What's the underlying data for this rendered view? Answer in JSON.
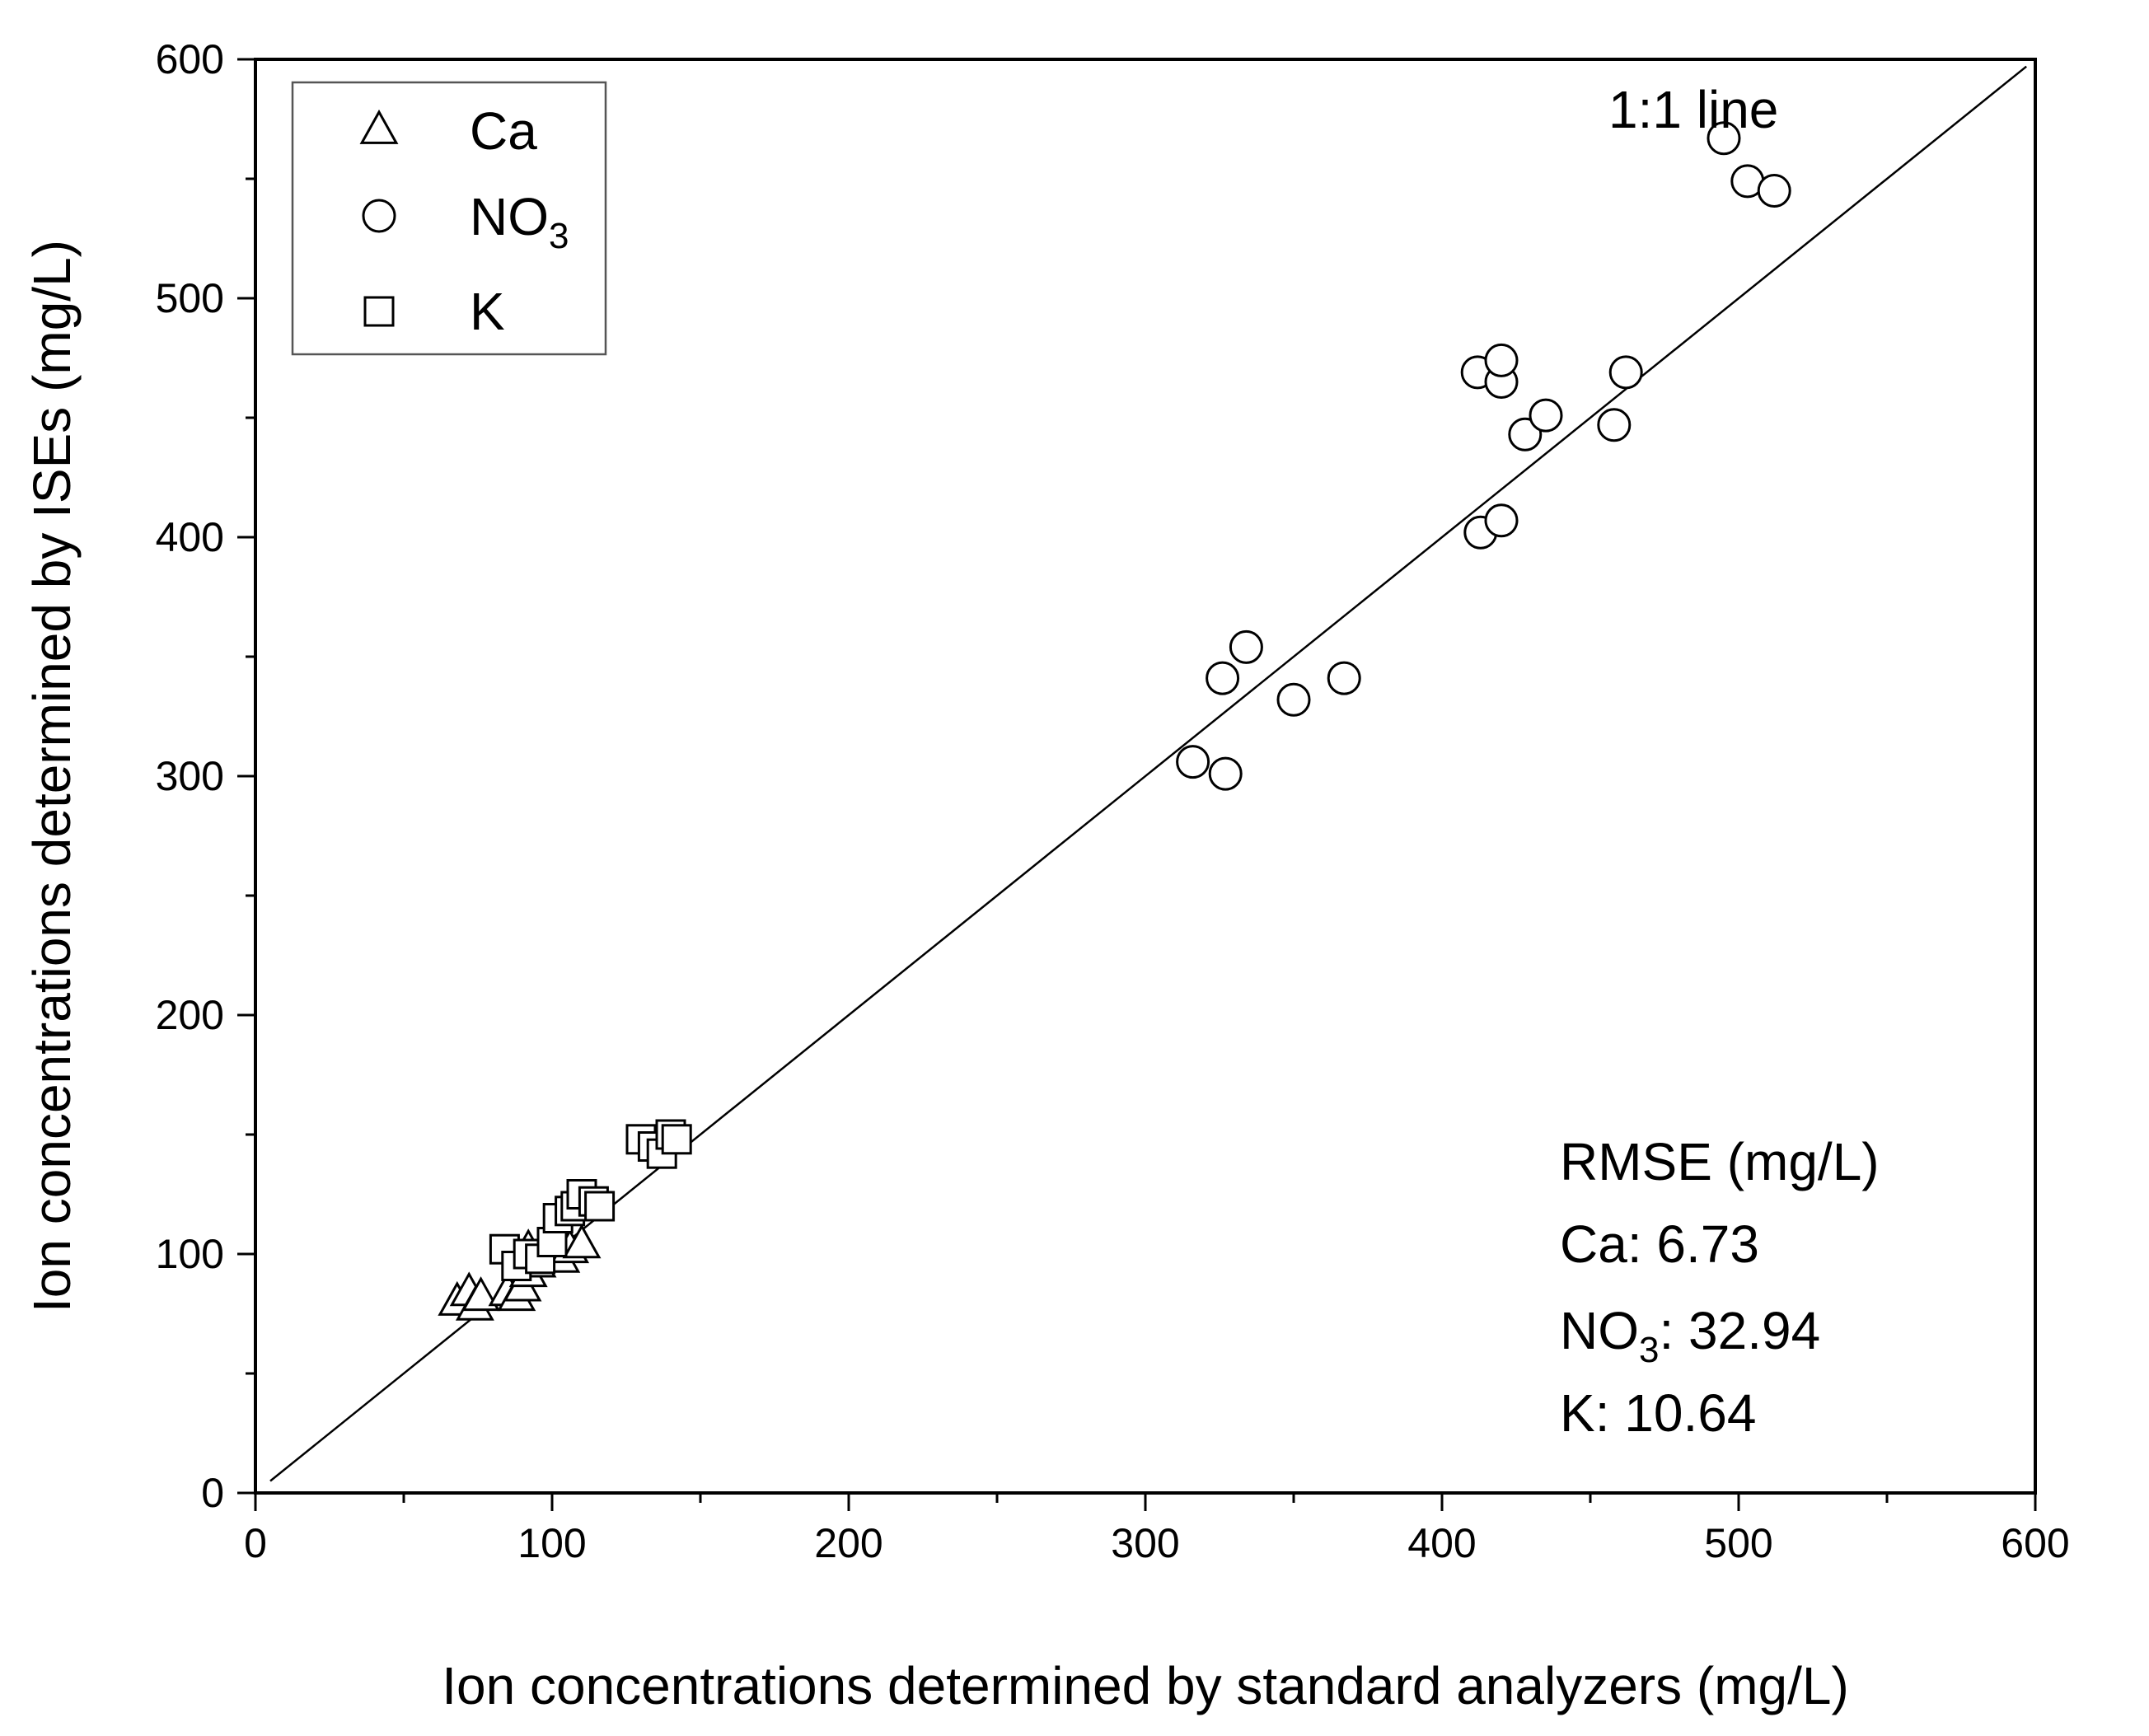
{
  "chart_data": {
    "type": "scatter",
    "title": "",
    "xlabel": "Ion concentrations determined by standard analyzers (mg/L)",
    "ylabel": "Ion concentrations determined by ISEs (mg/L)",
    "xlim": [
      0,
      600
    ],
    "ylim": [
      0,
      600
    ],
    "xticks": [
      0,
      100,
      200,
      300,
      400,
      500,
      600
    ],
    "yticks": [
      0,
      100,
      200,
      300,
      400,
      500,
      600
    ],
    "minor_tick_step": 50,
    "grid": false,
    "reference_line": {
      "label": "1:1 line",
      "from": [
        5,
        5
      ],
      "to": [
        597,
        597
      ]
    },
    "legend": {
      "position": "top-left",
      "entries": [
        {
          "marker": "triangle",
          "label": "Ca",
          "sub": ""
        },
        {
          "marker": "circle",
          "label": "NO",
          "sub": "3"
        },
        {
          "marker": "square",
          "label": "K",
          "sub": ""
        }
      ]
    },
    "stats_box": {
      "position": "bottom-right",
      "title": "RMSE (mg/L)",
      "lines": [
        {
          "prefix": "Ca",
          "sub": "",
          "value": ": 6.73"
        },
        {
          "prefix": "NO",
          "sub": "3",
          "value": ": 32.94"
        },
        {
          "prefix": "K",
          "sub": "",
          "value": ": 10.64"
        }
      ]
    },
    "series": [
      {
        "name": "Ca",
        "marker": "triangle",
        "points": [
          [
            68,
            80
          ],
          [
            72,
            84
          ],
          [
            74,
            78
          ],
          [
            76,
            82
          ],
          [
            85,
            84
          ],
          [
            88,
            82
          ],
          [
            90,
            86
          ],
          [
            92,
            92
          ],
          [
            95,
            96
          ],
          [
            92,
            102
          ],
          [
            100,
            100
          ],
          [
            103,
            98
          ],
          [
            106,
            102
          ],
          [
            110,
            104
          ]
        ]
      },
      {
        "name": "NO3",
        "marker": "circle",
        "points": [
          [
            316,
            306
          ],
          [
            326,
            341
          ],
          [
            327,
            301
          ],
          [
            334,
            354
          ],
          [
            350,
            332
          ],
          [
            367,
            341
          ],
          [
            412,
            469
          ],
          [
            413,
            402
          ],
          [
            420,
            465
          ],
          [
            420,
            474
          ],
          [
            420,
            407
          ],
          [
            428,
            443
          ],
          [
            435,
            451
          ],
          [
            458,
            447
          ],
          [
            462,
            469
          ],
          [
            495,
            567
          ],
          [
            503,
            549
          ],
          [
            512,
            545
          ]
        ]
      },
      {
        "name": "K",
        "marker": "square",
        "points": [
          [
            84,
            102
          ],
          [
            88,
            95
          ],
          [
            92,
            100
          ],
          [
            96,
            98
          ],
          [
            100,
            105
          ],
          [
            102,
            115
          ],
          [
            106,
            118
          ],
          [
            108,
            120
          ],
          [
            110,
            125
          ],
          [
            114,
            122
          ],
          [
            116,
            120
          ],
          [
            130,
            148
          ],
          [
            134,
            145
          ],
          [
            137,
            142
          ],
          [
            140,
            150
          ],
          [
            142,
            148
          ]
        ]
      }
    ]
  }
}
